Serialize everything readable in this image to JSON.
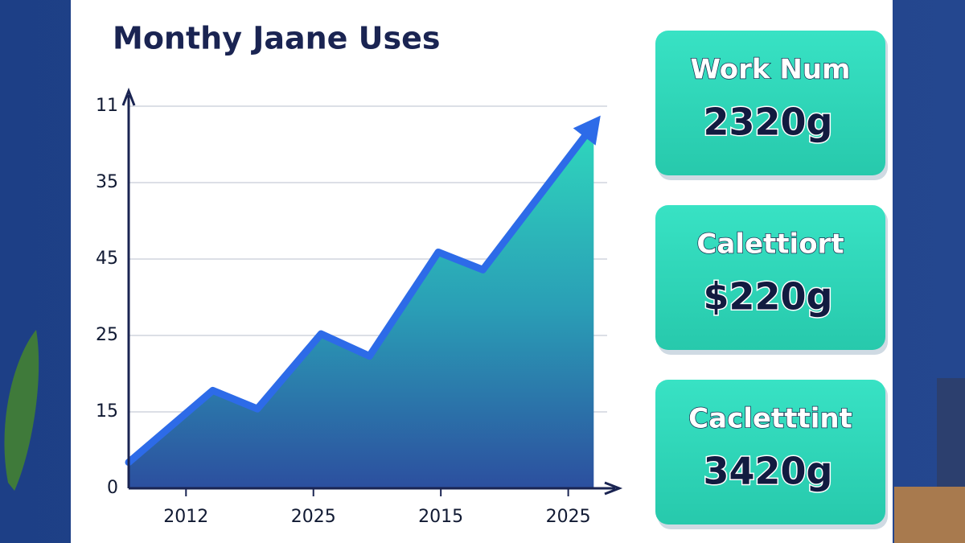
{
  "chart_data": {
    "type": "area",
    "title": "Monthy Jaane Uses",
    "x": [
      0.55,
      1.21,
      1.56,
      2.06,
      2.44,
      2.98,
      3.33,
      4.2
    ],
    "values": [
      0.34,
      1.28,
      1.04,
      2.02,
      1.73,
      3.09,
      2.86,
      4.76
    ],
    "color": "#2d6be8",
    "xlim": [
      0.55,
      4.4
    ],
    "xticks": [
      {
        "value": 1,
        "label": "2012"
      },
      {
        "value": 2,
        "label": "2025"
      },
      {
        "value": 3,
        "label": "2015"
      },
      {
        "value": 4,
        "label": "2025"
      }
    ],
    "ylim": [
      0,
      5.2
    ],
    "yticks": [
      {
        "value": 0,
        "label": "0"
      },
      {
        "value": 1,
        "label": "15"
      },
      {
        "value": 2,
        "label": "25"
      },
      {
        "value": 3,
        "label": "45"
      },
      {
        "value": 4,
        "label": "35"
      },
      {
        "value": 5,
        "label": "11"
      }
    ],
    "grid": true
  },
  "cards": [
    {
      "label": "Work Num",
      "value": "2320g"
    },
    {
      "label": "Calettiort",
      "value": "$220g"
    },
    {
      "label": "Cacletttint",
      "value": "3420g"
    }
  ]
}
